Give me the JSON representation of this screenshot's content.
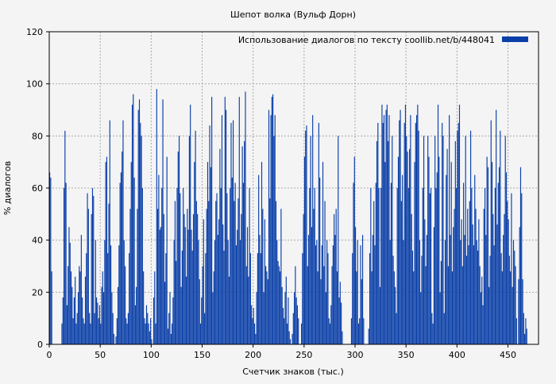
{
  "chart_data": {
    "type": "bar",
    "title": "Шепот волка (Вульф Дорн)",
    "xlabel": "Счетчик знаков (тыс.)",
    "ylabel": "% диалогов",
    "xlim": [
      0,
      480
    ],
    "ylim": [
      0,
      120
    ],
    "x_ticks": [
      0,
      50,
      100,
      150,
      200,
      250,
      300,
      350,
      400,
      450
    ],
    "y_ticks": [
      0,
      20,
      40,
      60,
      80,
      100,
      120
    ],
    "grid": true,
    "legend_position": "top-right",
    "series": [
      {
        "name": "Использование диалогов по тексту  coollib.net/b/448041",
        "color": "#0a3fa8",
        "bin_width": 1,
        "x_start": 0,
        "values": [
          66,
          64,
          28,
          0,
          0,
          0,
          0,
          0,
          0,
          0,
          0,
          0,
          8,
          18,
          60,
          82,
          62,
          15,
          30,
          45,
          39,
          28,
          22,
          10,
          18,
          26,
          8,
          12,
          20,
          30,
          28,
          42,
          18,
          10,
          8,
          26,
          35,
          58,
          52,
          12,
          8,
          50,
          60,
          57,
          12,
          40,
          18,
          16,
          10,
          15,
          8,
          22,
          28,
          20,
          40,
          70,
          72,
          35,
          54,
          86,
          38,
          20,
          12,
          4,
          0,
          3,
          10,
          22,
          38,
          62,
          66,
          74,
          86,
          40,
          30,
          10,
          8,
          12,
          35,
          52,
          70,
          92,
          96,
          64,
          15,
          22,
          52,
          90,
          94,
          85,
          80,
          60,
          28,
          10,
          8,
          15,
          12,
          8,
          5,
          10,
          2,
          0,
          18,
          28,
          8,
          98,
          52,
          65,
          44,
          45,
          60,
          94,
          50,
          24,
          35,
          72,
          6,
          12,
          20,
          4,
          8,
          18,
          40,
          55,
          32,
          60,
          74,
          80,
          58,
          22,
          36,
          60,
          50,
          45,
          26,
          52,
          44,
          80,
          92,
          44,
          36,
          50,
          70,
          82,
          55,
          50,
          40,
          25,
          8,
          18,
          30,
          48,
          12,
          35,
          52,
          70,
          55,
          84,
          68,
          95,
          20,
          28,
          40,
          55,
          58,
          42,
          48,
          75,
          60,
          88,
          46,
          36,
          95,
          90,
          58,
          40,
          26,
          60,
          85,
          64,
          86,
          55,
          62,
          38,
          44,
          56,
          95,
          40,
          50,
          76,
          62,
          78,
          97,
          30,
          45,
          26,
          60,
          35,
          15,
          10,
          14,
          8,
          4,
          20,
          35,
          65,
          42,
          35,
          70,
          52,
          20,
          48,
          30,
          28,
          25,
          90,
          56,
          88,
          95,
          96,
          80,
          88,
          55,
          40,
          32,
          30,
          28,
          52,
          22,
          14,
          10,
          20,
          26,
          8,
          18,
          5,
          2,
          0,
          4,
          12,
          20,
          30,
          18,
          15,
          10,
          0,
          0,
          8,
          35,
          50,
          72,
          82,
          84,
          30,
          42,
          60,
          80,
          45,
          88,
          52,
          60,
          38,
          40,
          28,
          85,
          64,
          25,
          38,
          70,
          30,
          55,
          20,
          40,
          35,
          10,
          8,
          15,
          30,
          38,
          50,
          42,
          52,
          28,
          80,
          18,
          24,
          16,
          5,
          0,
          0,
          0,
          0,
          0,
          0,
          0,
          0,
          10,
          35,
          62,
          72,
          45,
          28,
          40,
          8,
          10,
          38,
          25,
          42,
          10,
          0,
          0,
          0,
          0,
          6,
          35,
          60,
          28,
          42,
          55,
          38,
          62,
          78,
          85,
          60,
          22,
          60,
          92,
          85,
          88,
          70,
          90,
          92,
          78,
          88,
          40,
          62,
          80,
          34,
          28,
          22,
          12,
          60,
          72,
          86,
          90,
          55,
          65,
          40,
          85,
          92,
          80,
          74,
          60,
          75,
          88,
          50,
          36,
          28,
          70,
          85,
          88,
          92,
          82,
          40,
          20,
          34,
          60,
          80,
          48,
          30,
          42,
          80,
          72,
          58,
          60,
          12,
          8,
          45,
          80,
          60,
          66,
          92,
          72,
          20,
          32,
          85,
          80,
          12,
          40,
          65,
          75,
          30,
          88,
          42,
          70,
          28,
          45,
          52,
          78,
          60,
          82,
          85,
          92,
          40,
          48,
          30,
          62,
          42,
          80,
          34,
          52,
          38,
          55,
          82,
          60,
          46,
          38,
          65,
          52,
          40,
          36,
          48,
          30,
          20,
          26,
          15,
          52,
          60,
          42,
          72,
          68,
          22,
          34,
          86,
          70,
          50,
          38,
          60,
          90,
          46,
          62,
          68,
          82,
          35,
          28,
          42,
          50,
          80,
          66,
          55,
          48,
          34,
          28,
          58,
          22,
          40,
          36,
          30,
          10,
          0,
          25,
          45,
          68,
          58,
          25,
          12,
          4,
          10,
          6
        ]
      }
    ]
  }
}
